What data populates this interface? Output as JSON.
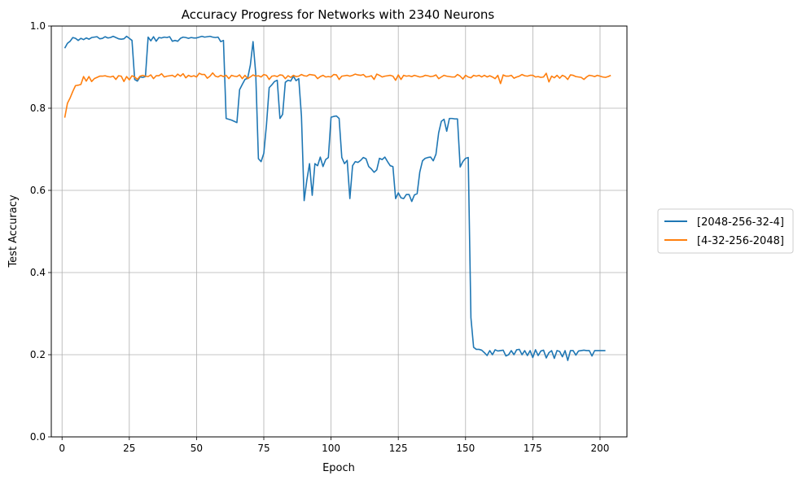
{
  "chart_data": {
    "type": "line",
    "title": "Accuracy Progress for Networks with 2340 Neurons",
    "xlabel": "Epoch",
    "ylabel": "Test Accuracy",
    "xlim": [
      -4,
      210
    ],
    "ylim": [
      0.0,
      1.0
    ],
    "xticks": [
      0,
      25,
      50,
      75,
      100,
      125,
      150,
      175,
      200
    ],
    "xtick_labels": [
      "0",
      "25",
      "50",
      "75",
      "100",
      "125",
      "150",
      "175",
      "200"
    ],
    "yticks": [
      0.0,
      0.2,
      0.4,
      0.6,
      0.8,
      1.0
    ],
    "ytick_labels": [
      "0.0",
      "0.2",
      "0.4",
      "0.6",
      "0.8",
      "1.0"
    ],
    "grid": true,
    "legend_position": "outside-right",
    "series": [
      {
        "name": "[2048-256-32-4]",
        "color": "#1f77b4",
        "x_start": 1,
        "values": [
          0.946,
          0.958,
          0.963,
          0.972,
          0.97,
          0.965,
          0.97,
          0.967,
          0.971,
          0.968,
          0.972,
          0.973,
          0.974,
          0.969,
          0.97,
          0.974,
          0.971,
          0.972,
          0.975,
          0.972,
          0.969,
          0.968,
          0.969,
          0.975,
          0.97,
          0.965,
          0.87,
          0.866,
          0.876,
          0.875,
          0.877,
          0.973,
          0.964,
          0.974,
          0.963,
          0.972,
          0.971,
          0.973,
          0.972,
          0.974,
          0.963,
          0.965,
          0.963,
          0.97,
          0.973,
          0.972,
          0.97,
          0.972,
          0.971,
          0.971,
          0.973,
          0.975,
          0.973,
          0.974,
          0.975,
          0.973,
          0.972,
          0.973,
          0.962,
          0.965,
          0.775,
          0.773,
          0.771,
          0.768,
          0.765,
          0.845,
          0.858,
          0.87,
          0.873,
          0.905,
          0.962,
          0.885,
          0.677,
          0.67,
          0.69,
          0.76,
          0.85,
          0.857,
          0.865,
          0.868,
          0.775,
          0.785,
          0.863,
          0.868,
          0.866,
          0.878,
          0.867,
          0.872,
          0.78,
          0.575,
          0.625,
          0.665,
          0.588,
          0.665,
          0.66,
          0.681,
          0.658,
          0.675,
          0.68,
          0.778,
          0.78,
          0.781,
          0.775,
          0.68,
          0.665,
          0.673,
          0.58,
          0.66,
          0.67,
          0.668,
          0.673,
          0.68,
          0.677,
          0.658,
          0.652,
          0.644,
          0.65,
          0.678,
          0.675,
          0.681,
          0.67,
          0.66,
          0.658,
          0.58,
          0.594,
          0.582,
          0.58,
          0.59,
          0.59,
          0.573,
          0.589,
          0.592,
          0.645,
          0.672,
          0.678,
          0.68,
          0.681,
          0.672,
          0.688,
          0.74,
          0.768,
          0.773,
          0.744,
          0.775,
          0.775,
          0.774,
          0.774,
          0.657,
          0.67,
          0.678,
          0.68,
          0.29,
          0.218,
          0.213,
          0.213,
          0.211,
          0.205,
          0.198,
          0.21,
          0.2,
          0.212,
          0.209,
          0.21,
          0.211,
          0.197,
          0.2,
          0.21,
          0.2,
          0.212,
          0.213,
          0.2,
          0.21,
          0.198,
          0.21,
          0.193,
          0.212,
          0.198,
          0.209,
          0.211,
          0.192,
          0.205,
          0.21,
          0.191,
          0.21,
          0.208,
          0.195,
          0.21,
          0.186,
          0.21,
          0.21,
          0.199,
          0.209,
          0.21,
          0.211,
          0.21,
          0.21,
          0.197,
          0.21,
          0.21,
          0.21,
          0.21,
          0.21
        ]
      },
      {
        "name": "[4-32-256-2048]",
        "color": "#ff7f0e",
        "x_start": 1,
        "values": [
          0.777,
          0.812,
          0.825,
          0.841,
          0.855,
          0.856,
          0.858,
          0.877,
          0.866,
          0.877,
          0.865,
          0.872,
          0.875,
          0.878,
          0.878,
          0.879,
          0.877,
          0.876,
          0.878,
          0.87,
          0.879,
          0.878,
          0.865,
          0.877,
          0.869,
          0.879,
          0.876,
          0.87,
          0.878,
          0.88,
          0.878,
          0.877,
          0.881,
          0.872,
          0.879,
          0.879,
          0.884,
          0.876,
          0.878,
          0.879,
          0.88,
          0.876,
          0.883,
          0.878,
          0.884,
          0.874,
          0.88,
          0.877,
          0.879,
          0.876,
          0.885,
          0.882,
          0.882,
          0.873,
          0.878,
          0.886,
          0.878,
          0.876,
          0.88,
          0.877,
          0.88,
          0.872,
          0.88,
          0.878,
          0.877,
          0.881,
          0.872,
          0.88,
          0.872,
          0.876,
          0.881,
          0.878,
          0.879,
          0.876,
          0.882,
          0.88,
          0.87,
          0.878,
          0.879,
          0.877,
          0.881,
          0.88,
          0.872,
          0.879,
          0.875,
          0.88,
          0.877,
          0.878,
          0.882,
          0.879,
          0.878,
          0.882,
          0.881,
          0.88,
          0.872,
          0.877,
          0.88,
          0.876,
          0.877,
          0.876,
          0.882,
          0.881,
          0.87,
          0.878,
          0.879,
          0.88,
          0.878,
          0.88,
          0.883,
          0.881,
          0.88,
          0.882,
          0.876,
          0.877,
          0.879,
          0.87,
          0.883,
          0.88,
          0.876,
          0.878,
          0.879,
          0.88,
          0.878,
          0.868,
          0.881,
          0.87,
          0.88,
          0.878,
          0.879,
          0.877,
          0.88,
          0.878,
          0.876,
          0.877,
          0.88,
          0.879,
          0.877,
          0.878,
          0.881,
          0.872,
          0.876,
          0.88,
          0.878,
          0.877,
          0.876,
          0.876,
          0.882,
          0.878,
          0.871,
          0.88,
          0.876,
          0.874,
          0.88,
          0.878,
          0.88,
          0.876,
          0.88,
          0.876,
          0.879,
          0.876,
          0.872,
          0.88,
          0.86,
          0.881,
          0.878,
          0.878,
          0.88,
          0.873,
          0.876,
          0.878,
          0.882,
          0.879,
          0.878,
          0.88,
          0.88,
          0.876,
          0.877,
          0.875,
          0.876,
          0.885,
          0.864,
          0.878,
          0.874,
          0.88,
          0.873,
          0.88,
          0.877,
          0.87,
          0.881,
          0.88,
          0.877,
          0.876,
          0.875,
          0.87,
          0.876,
          0.88,
          0.879,
          0.877,
          0.88,
          0.878,
          0.876,
          0.875,
          0.877,
          0.88
        ]
      }
    ]
  }
}
